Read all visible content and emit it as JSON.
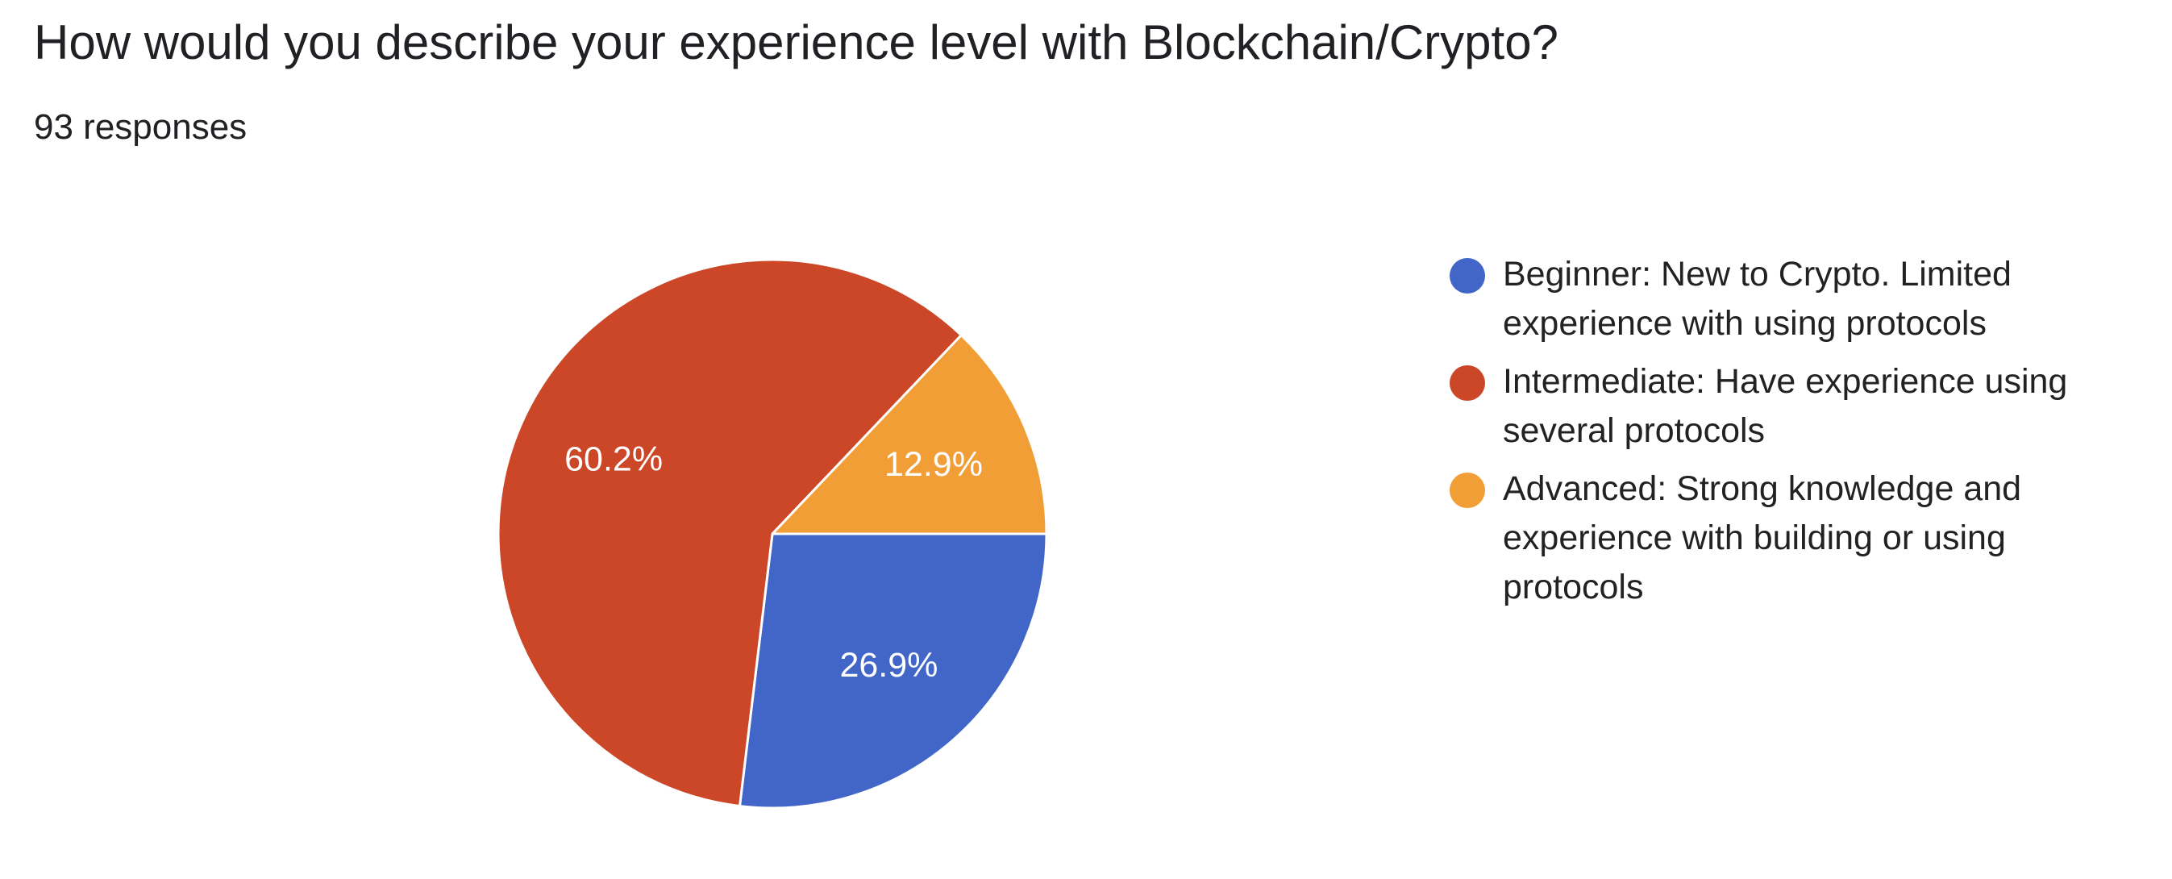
{
  "question": {
    "title": "How would you describe your experience level with Blockchain/Crypto?",
    "responses": "93 responses"
  },
  "chart_data": {
    "type": "pie",
    "title": "How would you describe your experience level with Blockchain/Crypto?",
    "total_responses": 93,
    "slices": [
      {
        "label": "Beginner: New to Crypto. Limited experience with using protocols",
        "value": 26.9,
        "display": "26.9%",
        "color": "#4166c8"
      },
      {
        "label": "Intermediate: Have experience using several protocols",
        "value": 60.2,
        "display": "60.2%",
        "color": "#cc4727"
      },
      {
        "label": "Advanced: Strong knowledge and experience with building or using protocols",
        "value": 12.9,
        "display": "12.9%",
        "color": "#f19e36"
      }
    ],
    "start_angle_deg": 0,
    "direction": "clockwise",
    "legend_position": "right"
  }
}
